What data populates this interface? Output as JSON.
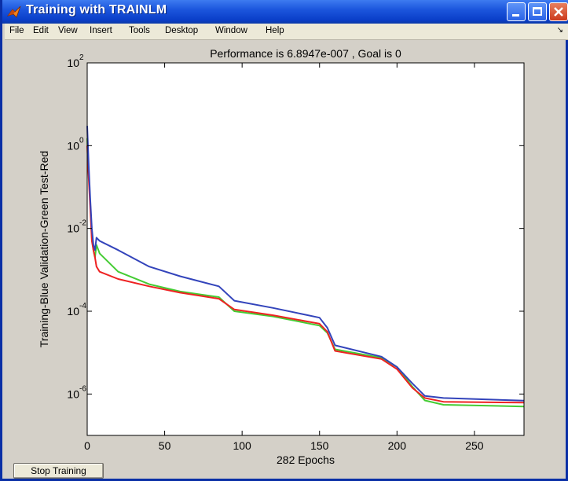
{
  "window": {
    "title": "Training with TRAINLM"
  },
  "menu": [
    "File",
    "Edit",
    "View",
    "Insert",
    "Tools",
    "Desktop",
    "Window",
    "Help"
  ],
  "buttons": {
    "stop_training": "Stop Training"
  },
  "colors": {
    "training": "#3344bb",
    "validation": "#44cc33",
    "test": "#ee2222"
  },
  "chart_data": {
    "type": "line",
    "title": "Performance is 6.8947e-007 , Goal is 0",
    "xlabel": "282 Epochs",
    "ylabel": "Training-Blue  Validation-Green  Test-Red",
    "xlim": [
      0,
      282
    ],
    "ylim_log10": [
      -7,
      2
    ],
    "yscale": "log",
    "x_ticks": [
      "0",
      "50",
      "100",
      "150",
      "200",
      "250"
    ],
    "y_ticks": [
      {
        "base": "10",
        "exp": "2"
      },
      {
        "base": "10",
        "exp": "0"
      },
      {
        "base": "10",
        "exp": "-2"
      },
      {
        "base": "10",
        "exp": "-4"
      },
      {
        "base": "10",
        "exp": "-6"
      }
    ],
    "series": [
      {
        "name": "Training",
        "color": "blue",
        "x": [
          0,
          1,
          2,
          3,
          4,
          5,
          6,
          8,
          20,
          40,
          60,
          85,
          95,
          120,
          150,
          155,
          160,
          190,
          200,
          210,
          218,
          230,
          282
        ],
        "y": [
          3,
          0.3,
          0.05,
          0.01,
          0.004,
          0.003,
          0.006,
          0.005,
          0.003,
          0.0012,
          0.0007,
          0.0004,
          0.00018,
          0.00012,
          7e-05,
          4e-05,
          1.5e-05,
          8e-06,
          4.5e-06,
          1.8e-06,
          9e-07,
          8e-07,
          6.9e-07
        ]
      },
      {
        "name": "Validation",
        "color": "green",
        "x": [
          0,
          1,
          2,
          3,
          4,
          5,
          6,
          8,
          20,
          40,
          60,
          85,
          95,
          120,
          150,
          155,
          160,
          190,
          200,
          210,
          218,
          230,
          282
        ],
        "y": [
          1.5,
          0.2,
          0.04,
          0.006,
          0.003,
          0.002,
          0.004,
          0.0025,
          0.0009,
          0.00045,
          0.0003,
          0.00022,
          0.0001,
          7.5e-05,
          4.5e-05,
          3e-05,
          1.2e-05,
          7.5e-06,
          4.5e-06,
          1.5e-06,
          7e-07,
          5.5e-07,
          5e-07
        ]
      },
      {
        "name": "Test",
        "color": "red",
        "x": [
          0,
          1,
          2,
          3,
          4,
          5,
          6,
          8,
          20,
          40,
          60,
          85,
          95,
          120,
          150,
          155,
          160,
          190,
          200,
          210,
          218,
          230,
          282
        ],
        "y": [
          1.0,
          0.15,
          0.03,
          0.005,
          0.003,
          0.002,
          0.0012,
          0.0009,
          0.0006,
          0.0004,
          0.00028,
          0.0002,
          0.00011,
          8e-05,
          5e-05,
          3.2e-05,
          1.1e-05,
          7e-06,
          4e-06,
          1.4e-06,
          8e-07,
          6.5e-07,
          6.2e-07
        ]
      }
    ],
    "grid": false
  }
}
